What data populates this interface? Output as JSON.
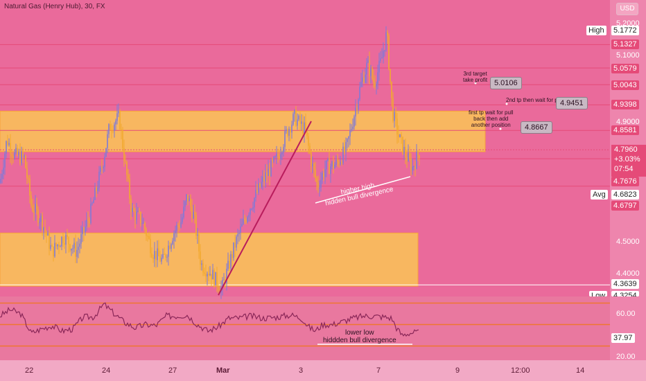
{
  "header": {
    "symbol": "Natural Gas (Henry Hub), 30, FX",
    "currency": "USD"
  },
  "price_axis": {
    "ticks": [
      "5.2000",
      "5.1000",
      "4.9000",
      "4.5000",
      "4.4000"
    ],
    "high_label": "High",
    "high_value": "5.1772",
    "avg_label": "Avg",
    "avg_value": "4.6823",
    "low_label": "Low",
    "low_value": "4.3254",
    "levels": [
      "5.1327",
      "5.0579",
      "5.0043",
      "4.9398",
      "4.8581",
      "4.7676",
      "4.6797",
      "4.3639"
    ],
    "current": {
      "price": "4.7960",
      "change": "+3.03%",
      "countdown": "07:54"
    }
  },
  "rsi_axis": {
    "ticks": [
      "60.00",
      "20.00"
    ],
    "value": "37.97"
  },
  "time_axis": [
    "22",
    "24",
    "27",
    "Mar",
    "3",
    "7",
    "9",
    "12:00",
    "14"
  ],
  "annotations": {
    "tp3": {
      "label_1": "3rd target",
      "label_2": "take profit",
      "value": "5.0106"
    },
    "tp2": {
      "label": "2nd tp then wait for pull back",
      "value": "4.9451"
    },
    "tp1": {
      "label_1": "first tp wait for pull",
      "label_2": "back then add",
      "label_3": "another position",
      "value": "4.8667"
    },
    "price_div": {
      "line_1": "higher high",
      "line_2": "hidden bull divergence"
    },
    "rsi_div": {
      "line_1": "lower low",
      "line_2": "hiddden bull divergence"
    }
  },
  "colors": {
    "background": "#ea6a9b",
    "zone": "#f9c158",
    "rsi_line": "#8a2758",
    "level_line": "#e54a78"
  },
  "chart_data": {
    "type": "candlestick",
    "title": "Natural Gas (Henry Hub), 30, FX",
    "x": [
      "22",
      "24",
      "27",
      "Mar",
      "3",
      "7",
      "9",
      "12:00",
      "14"
    ],
    "ylim": [
      4.32,
      5.22
    ],
    "close_path": [
      [
        0,
        4.69
      ],
      [
        10,
        4.83
      ],
      [
        20,
        4.78
      ],
      [
        35,
        4.77
      ],
      [
        45,
        4.62
      ],
      [
        60,
        4.57
      ],
      [
        75,
        4.47
      ],
      [
        92,
        4.52
      ],
      [
        110,
        4.47
      ],
      [
        130,
        4.59
      ],
      [
        148,
        4.75
      ],
      [
        158,
        4.87
      ],
      [
        172,
        4.9
      ],
      [
        180,
        4.76
      ],
      [
        190,
        4.6
      ],
      [
        205,
        4.57
      ],
      [
        220,
        4.47
      ],
      [
        235,
        4.44
      ],
      [
        250,
        4.53
      ],
      [
        262,
        4.57
      ],
      [
        270,
        4.65
      ],
      [
        280,
        4.58
      ],
      [
        290,
        4.43
      ],
      [
        305,
        4.4
      ],
      [
        320,
        4.35
      ],
      [
        340,
        4.5
      ],
      [
        360,
        4.61
      ],
      [
        380,
        4.7
      ],
      [
        400,
        4.77
      ],
      [
        415,
        4.86
      ],
      [
        425,
        4.9
      ],
      [
        440,
        4.86
      ],
      [
        450,
        4.75
      ],
      [
        458,
        4.68
      ],
      [
        470,
        4.74
      ],
      [
        485,
        4.75
      ],
      [
        500,
        4.8
      ],
      [
        510,
        4.9
      ],
      [
        520,
        5.0
      ],
      [
        530,
        5.07
      ],
      [
        540,
        5.01
      ],
      [
        550,
        5.08
      ],
      [
        558,
        5.17
      ],
      [
        566,
        4.92
      ],
      [
        575,
        4.84
      ],
      [
        585,
        4.78
      ],
      [
        595,
        4.74
      ],
      [
        605,
        4.79
      ]
    ],
    "levels": [
      5.1327,
      5.0579,
      5.0043,
      4.9398,
      4.8581,
      4.7676,
      4.6797,
      4.3639
    ],
    "zones": [
      {
        "top": 4.92,
        "bottom": 4.79
      },
      {
        "top": 4.53,
        "bottom": 4.36
      }
    ],
    "rsi": {
      "ylim": [
        15,
        72
      ],
      "levels": [
        70,
        50,
        30
      ],
      "current": 37.97,
      "points": [
        [
          0,
          58
        ],
        [
          15,
          64
        ],
        [
          30,
          60
        ],
        [
          45,
          42
        ],
        [
          60,
          46
        ],
        [
          75,
          49
        ],
        [
          90,
          44
        ],
        [
          105,
          46
        ],
        [
          120,
          57
        ],
        [
          135,
          57
        ],
        [
          150,
          69
        ],
        [
          165,
          60
        ],
        [
          180,
          52
        ],
        [
          195,
          47
        ],
        [
          210,
          50
        ],
        [
          225,
          49
        ],
        [
          240,
          58
        ],
        [
          255,
          58
        ],
        [
          270,
          59
        ],
        [
          285,
          50
        ],
        [
          300,
          44
        ],
        [
          315,
          48
        ],
        [
          330,
          56
        ],
        [
          345,
          56
        ],
        [
          360,
          58
        ],
        [
          380,
          56
        ],
        [
          400,
          57
        ],
        [
          420,
          59
        ],
        [
          435,
          56
        ],
        [
          445,
          48
        ],
        [
          455,
          44
        ],
        [
          465,
          50
        ],
        [
          480,
          50
        ],
        [
          495,
          53
        ],
        [
          510,
          56
        ],
        [
          525,
          58
        ],
        [
          540,
          58
        ],
        [
          555,
          57
        ],
        [
          565,
          56
        ],
        [
          572,
          47
        ],
        [
          580,
          40
        ],
        [
          590,
          42
        ],
        [
          600,
          43
        ],
        [
          605,
          42
        ]
      ]
    }
  }
}
